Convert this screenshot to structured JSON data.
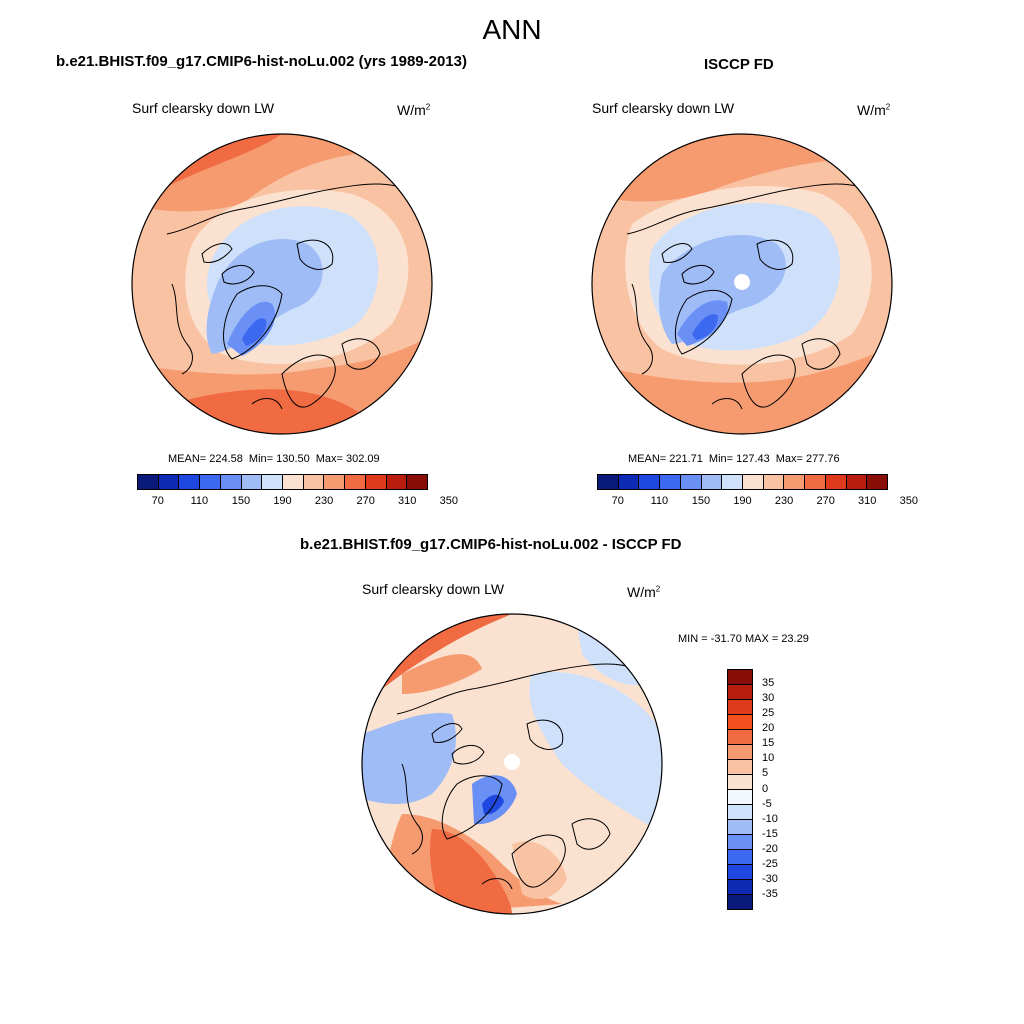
{
  "main_title": "ANN",
  "panel1": {
    "title": "b.e21.BHIST.f09_g17.CMIP6-hist-noLu.002 (yrs 1989-2013)",
    "var_label": "Surf clearsky down LW",
    "units_base": "W/m",
    "units_exp": "2",
    "mean_text": "MEAN= 224.58",
    "min_text": "Min= 130.50",
    "max_text": "Max= 302.09"
  },
  "panel2": {
    "title": "ISCCP FD",
    "var_label": "Surf clearsky down LW",
    "units_base": "W/m",
    "units_exp": "2",
    "mean_text": "MEAN= 221.71",
    "min_text": "Min= 127.43",
    "max_text": "Max= 277.76"
  },
  "panel3": {
    "title": "b.e21.BHIST.f09_g17.CMIP6-hist-noLu.002 - ISCCP FD",
    "var_label": "Surf clearsky down LW",
    "units_base": "W/m",
    "units_exp": "2",
    "minmax_text": "MIN = -31.70 MAX =  23.29"
  },
  "colorbar_top": {
    "colors": [
      "#0a1a7a",
      "#0d2bb5",
      "#1f48e0",
      "#3d68f0",
      "#6a90f5",
      "#9fbcf7",
      "#cfe0fb",
      "#fbe2d0",
      "#f9c2a2",
      "#f69a70",
      "#f06a42",
      "#df3a1c",
      "#b81d0e",
      "#8a0e08"
    ],
    "tick_labels": [
      "70",
      "110",
      "150",
      "190",
      "230",
      "270",
      "310",
      "350"
    ]
  },
  "colorbar_diff": {
    "colors": [
      "#8a0e08",
      "#b81d0e",
      "#df3a1c",
      "#f4501e",
      "#f06a42",
      "#f69a70",
      "#f9c2a2",
      "#fbe2d0",
      "#f2f6fd",
      "#cfe0fb",
      "#9fbcf7",
      "#6a90f5",
      "#3d68f0",
      "#1f48e0",
      "#0d2bb5",
      "#0a1a7a"
    ],
    "tick_labels": [
      "35",
      "30",
      "25",
      "20",
      "15",
      "10",
      "5",
      "0",
      "-5",
      "-10",
      "-15",
      "-20",
      "-25",
      "-30",
      "-35"
    ]
  },
  "chart_data": [
    {
      "type": "heatmap",
      "projection": "north polar stereographic",
      "title": "b.e21.BHIST.f09_g17.CMIP6-hist-noLu.002 (yrs 1989-2013)",
      "variable": "Surf clearsky down LW",
      "units": "W/m2",
      "mean": 224.58,
      "min": 130.5,
      "max": 302.09,
      "contour_levels": [
        70,
        90,
        110,
        130,
        150,
        170,
        190,
        210,
        230,
        250,
        270,
        290,
        310,
        330,
        350
      ]
    },
    {
      "type": "heatmap",
      "projection": "north polar stereographic",
      "title": "ISCCP FD",
      "variable": "Surf clearsky down LW",
      "units": "W/m2",
      "mean": 221.71,
      "min": 127.43,
      "max": 277.76,
      "contour_levels": [
        70,
        90,
        110,
        130,
        150,
        170,
        190,
        210,
        230,
        250,
        270,
        290,
        310,
        330,
        350
      ]
    },
    {
      "type": "heatmap",
      "projection": "north polar stereographic",
      "title": "b.e21.BHIST.f09_g17.CMIP6-hist-noLu.002 - ISCCP FD",
      "variable": "Surf clearsky down LW",
      "units": "W/m2",
      "min": -31.7,
      "max": 23.29,
      "contour_levels": [
        -35,
        -30,
        -25,
        -20,
        -15,
        -10,
        -5,
        0,
        5,
        10,
        15,
        20,
        25,
        30,
        35
      ]
    }
  ]
}
